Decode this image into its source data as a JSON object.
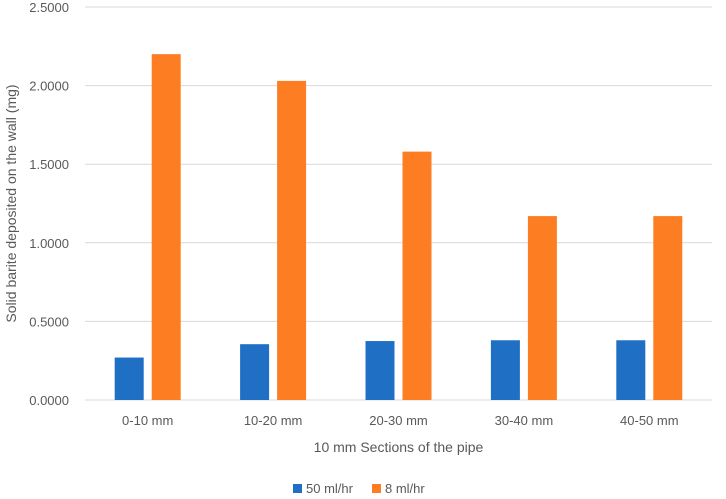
{
  "chart_data": {
    "type": "bar",
    "title": "",
    "xlabel": "10 mm Sections of the pipe",
    "ylabel": "Solid barite deposited on the wall (mg)",
    "categories": [
      "0-10 mm",
      "10-20 mm",
      "20-30 mm",
      "30-40 mm",
      "40-50 mm"
    ],
    "series": [
      {
        "name": "50 ml/hr",
        "color": "#1f6fc5",
        "values": [
          0.27,
          0.355,
          0.375,
          0.38,
          0.38
        ]
      },
      {
        "name": "8 ml/hr",
        "color": "#fd7e22",
        "values": [
          2.2,
          2.03,
          1.58,
          1.17,
          1.17
        ]
      }
    ],
    "ylim": [
      0,
      2.5
    ],
    "yticks": [
      "0.0000",
      "0.5000",
      "1.0000",
      "1.5000",
      "2.0000",
      "2.5000"
    ],
    "grid": true,
    "legend_position": "bottom"
  }
}
